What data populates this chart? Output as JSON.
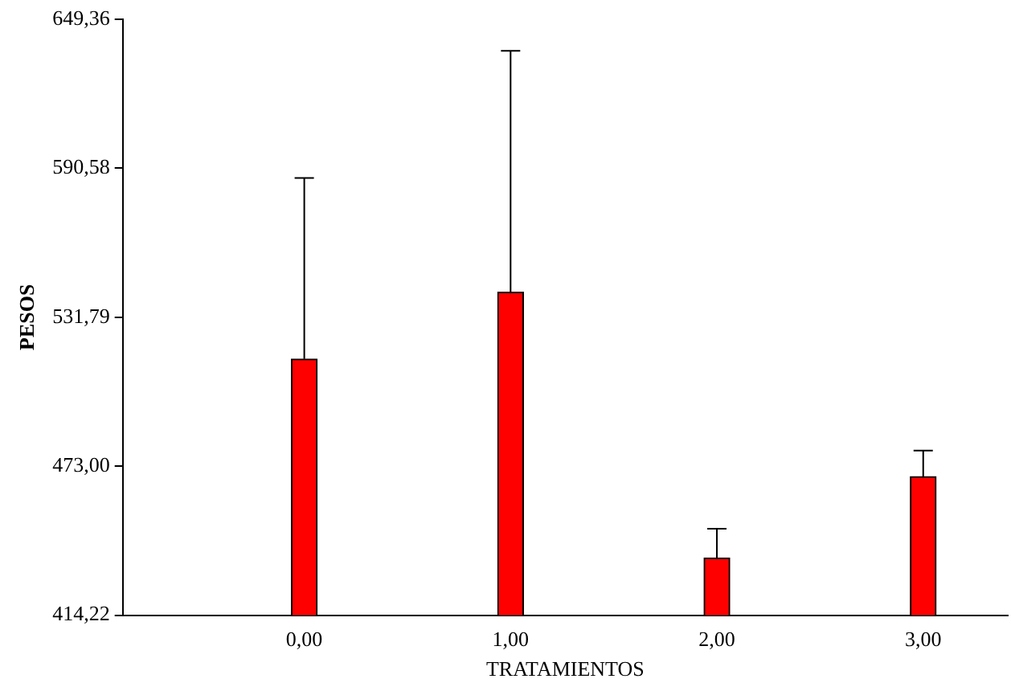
{
  "chart_data": {
    "type": "bar",
    "xlabel": "TRATAMIENTOS",
    "ylabel": "PESOS",
    "x": [
      0,
      1,
      2,
      3
    ],
    "values": [
      515.3,
      541.7,
      436.8,
      468.9
    ],
    "errors": [
      [
        515.3,
        586.7
      ],
      [
        541.7,
        636.9
      ],
      [
        436.8,
        448.3
      ],
      [
        468.9,
        479.2
      ]
    ],
    "color": "#ff0000",
    "xlim": [
      -0.88,
      3.41
    ],
    "xticks": [
      {
        "value": 0,
        "label": "0,00"
      },
      {
        "value": 1,
        "label": "1,00"
      },
      {
        "value": 2,
        "label": "2,00"
      },
      {
        "value": 3,
        "label": "3,00"
      }
    ],
    "ylim": [
      414.22,
      649.36
    ],
    "yticks": [
      {
        "value": 414.22,
        "label": "414,22"
      },
      {
        "value": 473.0,
        "label": "473,00"
      },
      {
        "value": 531.79,
        "label": "531,79"
      },
      {
        "value": 590.58,
        "label": "590,58"
      },
      {
        "value": 649.36,
        "label": "649,36"
      }
    ],
    "grid": false,
    "legend": false
  }
}
